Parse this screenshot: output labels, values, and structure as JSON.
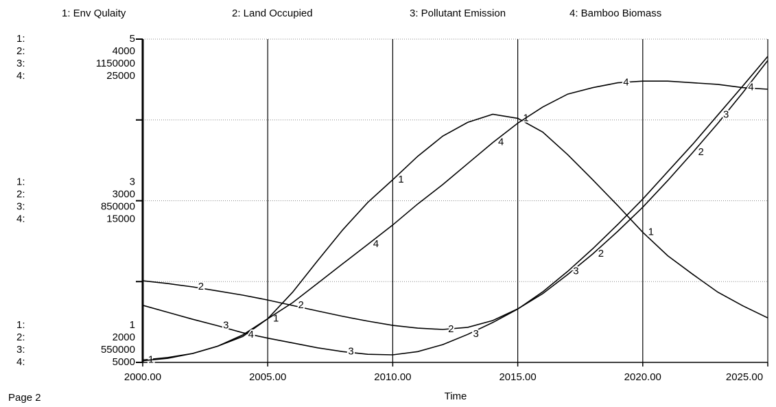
{
  "chart_data": {
    "type": "line",
    "page_label": "Page 2",
    "xlabel": "Time",
    "x": [
      2000,
      2001,
      2002,
      2003,
      2004,
      2005,
      2006,
      2007,
      2008,
      2009,
      2010,
      2011,
      2012,
      2013,
      2014,
      2015,
      2016,
      2017,
      2018,
      2019,
      2020,
      2021,
      2022,
      2023,
      2024,
      2025
    ],
    "xlim": [
      2000,
      2025
    ],
    "xticks": [
      {
        "value": 2000,
        "label": "2000.00"
      },
      {
        "value": 2005,
        "label": "2005.00"
      },
      {
        "value": 2010,
        "label": "2010.00"
      },
      {
        "value": 2015,
        "label": "2015.00"
      },
      {
        "value": 2020,
        "label": "2020.00"
      },
      {
        "value": 2025,
        "label": "2025.00"
      }
    ],
    "grid": true,
    "series": [
      {
        "name": "1: Env Qulaity",
        "marker": "1",
        "axis_prefix": "1:",
        "color": "#000000",
        "ylim": [
          1,
          5
        ],
        "yticks": [
          1,
          3,
          5
        ],
        "values": [
          1.03,
          1.06,
          1.11,
          1.2,
          1.32,
          1.54,
          1.87,
          2.26,
          2.64,
          2.98,
          3.26,
          3.55,
          3.8,
          3.97,
          4.07,
          4.02,
          3.85,
          3.57,
          3.26,
          2.94,
          2.61,
          2.32,
          2.09,
          1.87,
          1.7,
          1.55
        ]
      },
      {
        "name": "2: Land Occupied",
        "marker": "2",
        "axis_prefix": "2:",
        "color": "#000000",
        "ylim": [
          2000,
          4000
        ],
        "yticks": [
          2000,
          3000,
          4000
        ],
        "values": [
          2505,
          2488,
          2467,
          2442,
          2416,
          2386,
          2352,
          2318,
          2285,
          2255,
          2229,
          2212,
          2204,
          2217,
          2259,
          2331,
          2425,
          2544,
          2671,
          2811,
          2960,
          3125,
          3299,
          3478,
          3669,
          3868
        ]
      },
      {
        "name": "3: Pollutant Emission",
        "marker": "3",
        "axis_prefix": "3:",
        "color": "#000000",
        "ylim": [
          550000,
          1150000
        ],
        "yticks": [
          550000,
          850000,
          1150000
        ],
        "values": [
          656000,
          643000,
          630000,
          618000,
          605000,
          595000,
          586000,
          577000,
          570000,
          565000,
          564000,
          570000,
          583000,
          602000,
          624000,
          649000,
          681000,
          719000,
          761000,
          806000,
          853000,
          904000,
          955000,
          1009000,
          1063000,
          1118000
        ]
      },
      {
        "name": "4: Bamboo Biomass",
        "marker": "4",
        "axis_prefix": "4:",
        "color": "#000000",
        "ylim": [
          5000,
          25000
        ],
        "yticks": [
          5000,
          15000,
          25000
        ],
        "values": [
          5100,
          5250,
          5550,
          6000,
          6700,
          7700,
          8700,
          9900,
          11100,
          12300,
          13500,
          14800,
          16000,
          17300,
          18600,
          19800,
          20800,
          21600,
          22000,
          22300,
          22400,
          22400,
          22300,
          22200,
          22000,
          21900
        ]
      }
    ]
  }
}
